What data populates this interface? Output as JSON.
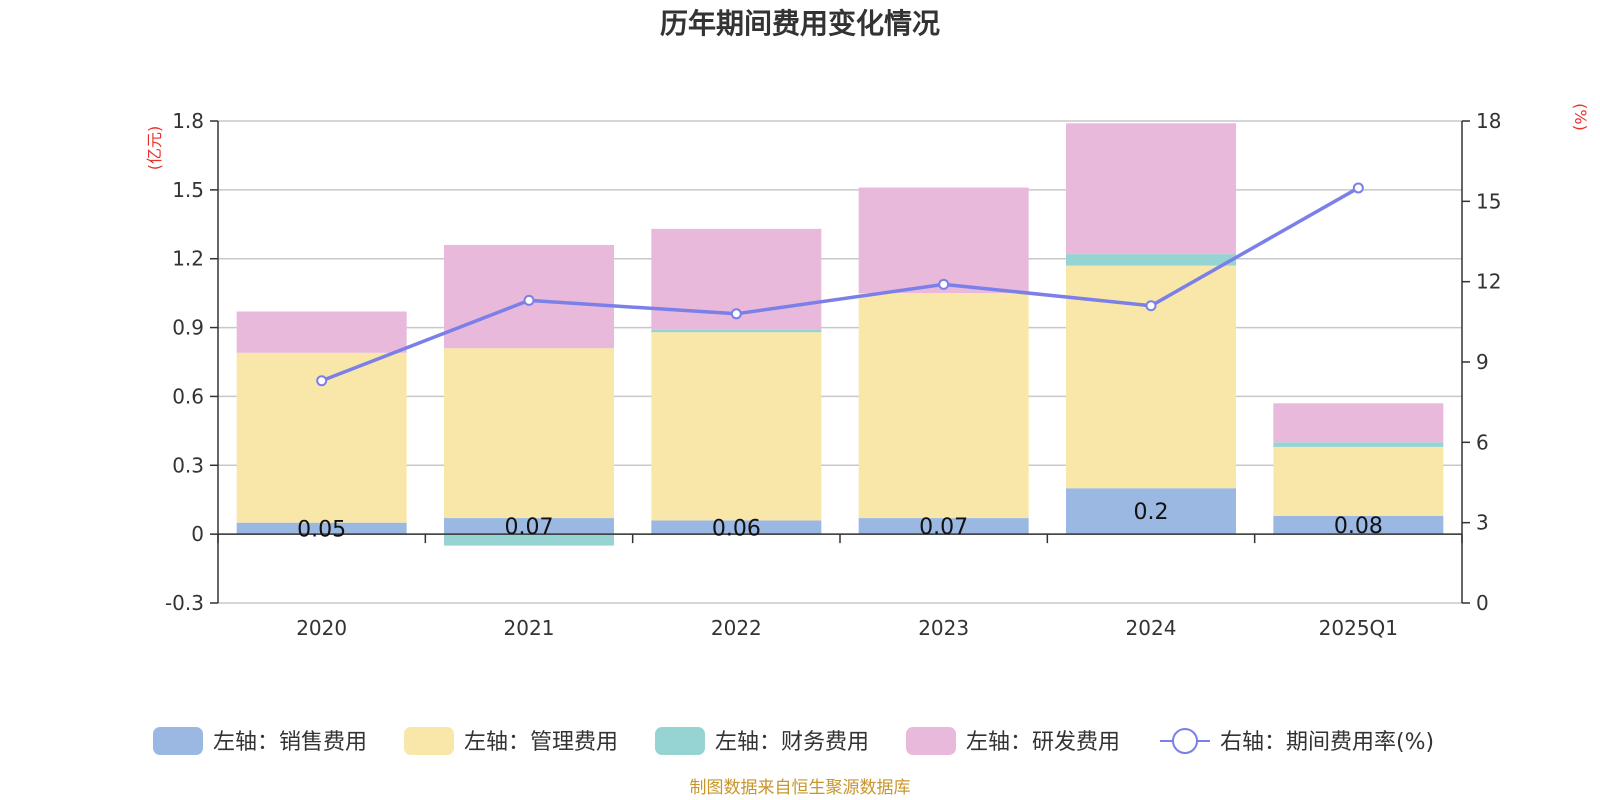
{
  "chart_data": {
    "type": "bar+line",
    "title": "历年期间费用变化情况",
    "categories": [
      "2020",
      "2021",
      "2022",
      "2023",
      "2024",
      "2025Q1"
    ],
    "left_axis": {
      "unit": "(亿元)",
      "ylim": [
        -0.3,
        1.8
      ],
      "ticks": [
        "-0.3",
        "0",
        "0.3",
        "0.6",
        "0.9",
        "1.2",
        "1.5",
        "1.8"
      ]
    },
    "right_axis": {
      "unit": "(%)",
      "ylim": [
        0,
        18
      ],
      "ticks": [
        "0",
        "3",
        "6",
        "9",
        "12",
        "15",
        "18"
      ]
    },
    "series": [
      {
        "name": "左轴：销售费用",
        "color": "#9bb8e3",
        "values": [
          0.05,
          0.07,
          0.06,
          0.07,
          0.2,
          0.08
        ],
        "labels": [
          "0.05",
          "0.07",
          "0.06",
          "0.07",
          "0.2",
          "0.08"
        ]
      },
      {
        "name": "左轴：管理费用",
        "color": "#f8e7a9",
        "values": [
          0.74,
          0.74,
          0.82,
          0.98,
          0.97,
          0.3
        ]
      },
      {
        "name": "左轴：财务费用",
        "color": "#96d4d4",
        "values": [
          0.0,
          -0.05,
          0.01,
          0.0,
          0.05,
          0.02
        ]
      },
      {
        "name": "左轴：研发费用",
        "color": "#e8b9da",
        "values": [
          0.18,
          0.45,
          0.44,
          0.46,
          0.57,
          0.17
        ]
      }
    ],
    "line_series": {
      "name": "右轴：期间费用率(%)",
      "color": "#7b7fe8",
      "values": [
        8.3,
        11.3,
        10.8,
        11.9,
        11.1,
        15.5
      ]
    },
    "grid": true,
    "legend_position": "bottom"
  },
  "source_text": "制图数据来自恒生聚源数据库"
}
